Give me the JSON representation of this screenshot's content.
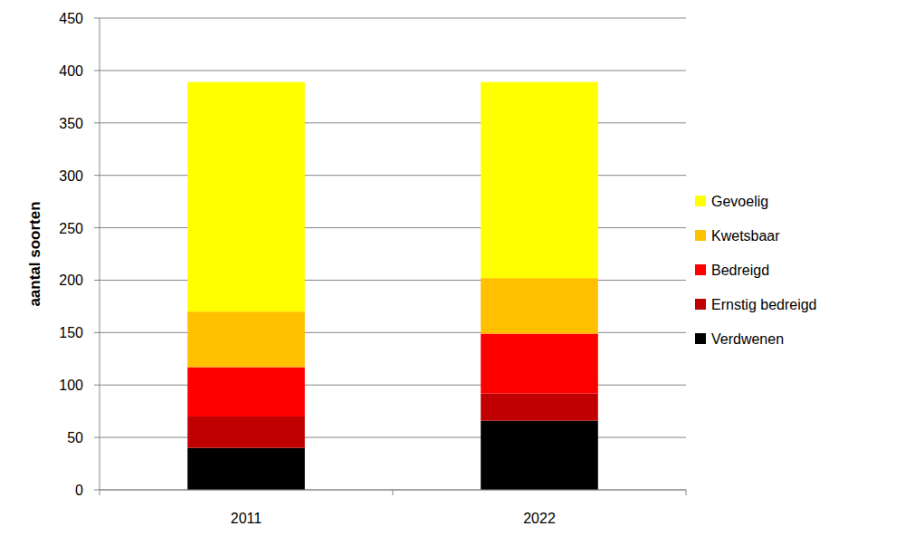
{
  "chart_data": {
    "type": "bar",
    "stacked": true,
    "grid": true,
    "legend": "right",
    "y_label": "aantal soorten",
    "categories": [
      "2011",
      "2022"
    ],
    "ylim": [
      0,
      450
    ],
    "yticks": [
      0,
      50,
      100,
      150,
      200,
      250,
      300,
      350,
      400,
      450
    ],
    "series": [
      {
        "name": "Verdwenen",
        "color": "#000000",
        "values": [
          40,
          66
        ]
      },
      {
        "name": "Ernstig bedreigd",
        "color": "#c00000",
        "values": [
          30,
          26
        ]
      },
      {
        "name": "Bedreigd",
        "color": "#ff0000",
        "values": [
          47,
          57
        ]
      },
      {
        "name": "Kwetsbaar",
        "color": "#ffc000",
        "values": [
          53,
          53
        ]
      },
      {
        "name": "Gevoelig",
        "color": "#ffff00",
        "values": [
          219,
          187
        ]
      }
    ]
  }
}
